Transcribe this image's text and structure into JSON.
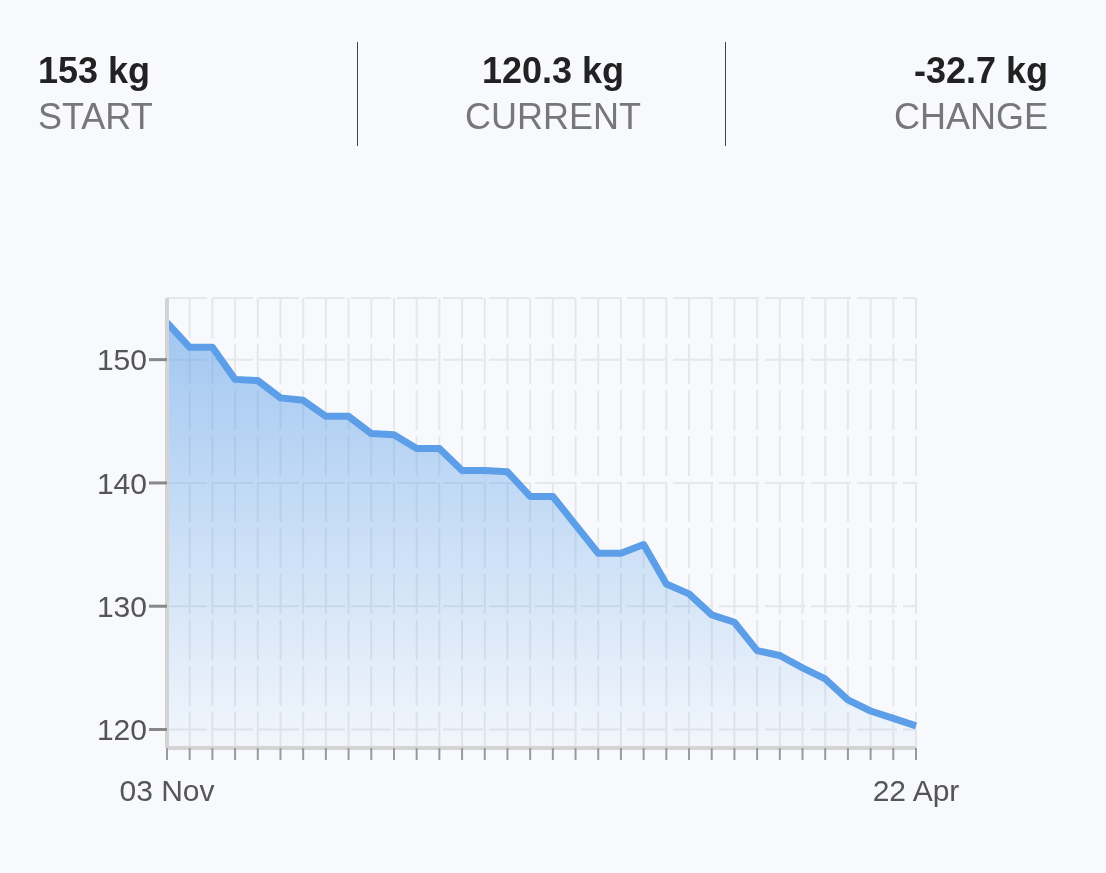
{
  "chart_data": {
    "type": "area",
    "annotations": [
      "153 kg",
      "START",
      "120.3 kg",
      "CURRENT",
      "-32.7 kg",
      "CHANGE"
    ],
    "categories": [
      "03 Nov",
      null,
      null,
      null,
      null,
      null,
      null,
      null,
      null,
      null,
      null,
      null,
      null,
      null,
      null,
      null,
      null,
      null,
      null,
      null,
      null,
      null,
      null,
      null,
      null,
      null,
      null,
      null,
      null,
      null,
      null,
      null,
      null,
      "22 Apr"
    ],
    "series": [
      {
        "color": "#5c9ee8",
        "values": [
          153,
          151.0,
          151.0,
          148.4,
          148.3,
          146.9,
          146.7,
          145.4,
          145.4,
          144.0,
          143.9,
          142.8,
          142.8,
          141.0,
          141.0,
          140.9,
          138.9,
          138.9,
          136.6,
          134.3,
          134.3,
          135.0,
          131.8,
          131.0,
          129.3,
          128.7,
          126.4,
          126.0,
          125.0,
          124.1,
          122.4,
          121.5,
          120.9,
          120.3
        ]
      }
    ],
    "ylim": [
      118.5,
      155
    ],
    "yticks": [
      120,
      130,
      140,
      150
    ],
    "grid": true
  }
}
